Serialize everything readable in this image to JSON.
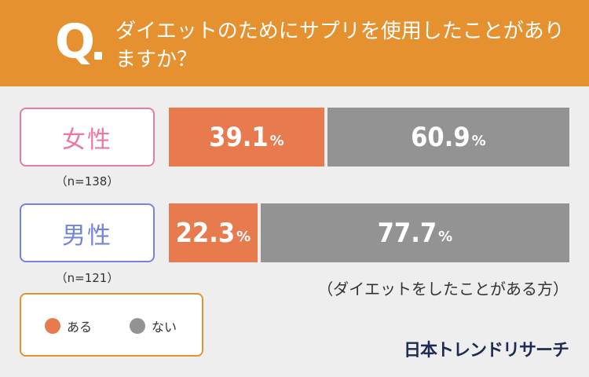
{
  "header": {
    "q_mark": "Q",
    "question": "ダイエットのためにサプリを使用したことがありますか？"
  },
  "groups": [
    {
      "label": "女性",
      "n": "（n=138）"
    },
    {
      "label": "男性",
      "n": "（n=121）"
    }
  ],
  "note": "（ダイエットをしたことがある方）",
  "legend": [
    {
      "label": "ある",
      "color": "#e87b4e"
    },
    {
      "label": "ない",
      "color": "#939393"
    }
  ],
  "brand": "日本トレンドリサーチ",
  "chart_data": {
    "type": "bar",
    "orientation": "horizontal",
    "stacked": true,
    "title": "ダイエットのためにサプリを使用したことがありますか？",
    "subtitle": "（ダイエットをしたことがある方）",
    "categories": [
      "女性",
      "男性"
    ],
    "sample_sizes": [
      "（n=138）",
      "（n=121）"
    ],
    "unit": "%",
    "series": [
      {
        "name": "ある",
        "color": "#e87b4e",
        "values": [
          39.1,
          22.3
        ]
      },
      {
        "name": "ない",
        "color": "#939393",
        "values": [
          60.9,
          77.7
        ]
      }
    ],
    "xlim": [
      0,
      100
    ],
    "legend_position": "bottom-left",
    "grid": false
  }
}
